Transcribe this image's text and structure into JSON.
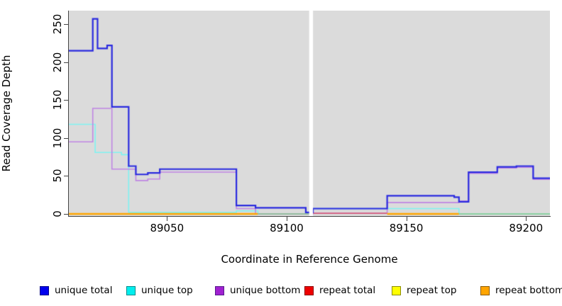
{
  "chart_data": {
    "type": "line",
    "subtype": "step",
    "title": "",
    "xlabel": "Coordinate in Reference Genome",
    "ylabel": "Read Coverage Depth",
    "xlim": [
      89009,
      89210
    ],
    "ylim": [
      0,
      268
    ],
    "xticks": [
      89050,
      89100,
      89150,
      89200
    ],
    "yticks": [
      0,
      50,
      100,
      150,
      200,
      250
    ],
    "grid": "off",
    "plot_background": "#DBDBDB",
    "gap_band_x": [
      89109.4,
      89111
    ],
    "series": [
      {
        "name": "unique total",
        "color": "#2A2ADF",
        "width": 2.2,
        "draw": true,
        "points": [
          [
            89009,
            215
          ],
          [
            89019,
            257
          ],
          [
            89021,
            218
          ],
          [
            89025,
            222
          ],
          [
            89027,
            141
          ],
          [
            89034,
            63
          ],
          [
            89037,
            52
          ],
          [
            89042,
            54
          ],
          [
            89047,
            59
          ],
          [
            89079,
            11
          ],
          [
            89087,
            8
          ],
          [
            89108,
            2
          ],
          [
            89111,
            7
          ],
          [
            89142,
            24
          ],
          [
            89170,
            22
          ],
          [
            89172,
            16
          ],
          [
            89176,
            55
          ],
          [
            89188,
            62
          ],
          [
            89196,
            63
          ],
          [
            89203,
            47
          ]
        ]
      },
      {
        "name": "unique top",
        "color": "#7EF3F1",
        "width": 1.6,
        "draw": true,
        "points": [
          [
            89009,
            118
          ],
          [
            89020,
            81
          ],
          [
            89031,
            78
          ],
          [
            89034,
            2
          ],
          [
            89079,
            4
          ],
          [
            89088,
            0
          ],
          [
            89111,
            7
          ],
          [
            89172,
            0
          ]
        ]
      },
      {
        "name": "unique bottom",
        "color": "#BF85E3",
        "width": 1.6,
        "draw": true,
        "points": [
          [
            89009,
            95
          ],
          [
            89019,
            139
          ],
          [
            89027,
            59
          ],
          [
            89037,
            44
          ],
          [
            89042,
            46
          ],
          [
            89047,
            55
          ],
          [
            89079,
            7
          ],
          [
            89087,
            0
          ],
          [
            89111,
            1
          ],
          [
            89142,
            15
          ],
          [
            89172,
            17
          ],
          [
            89176,
            53.5
          ],
          [
            89188,
            60.5
          ],
          [
            89196,
            61.5
          ],
          [
            89203,
            45.5
          ]
        ]
      },
      {
        "name": "repeat total",
        "color": "#EE0000",
        "width": 1.6,
        "draw": false,
        "points": [
          [
            89009,
            0
          ]
        ]
      },
      {
        "name": "repeat top",
        "color": "#FFFF00",
        "width": 1.6,
        "draw": false,
        "points": [
          [
            89009,
            0
          ]
        ]
      },
      {
        "name": "repeat bottom",
        "color": "#FFA500",
        "width": 2.4,
        "draw": false,
        "points": [
          [
            89009,
            0
          ]
        ]
      }
    ],
    "bottom_segments": [
      {
        "x0": 89009,
        "x1": 89088,
        "value": 0,
        "color": "#FFA500",
        "width": 2.4
      },
      {
        "x0": 89088,
        "x1": 89109.4,
        "value": 0,
        "color": "#87C787",
        "width": 1.6
      },
      {
        "x0": 89111,
        "x1": 89142,
        "value": 0.8,
        "color": "#D45E7C",
        "width": 1.8
      },
      {
        "x0": 89142,
        "x1": 89172,
        "value": 0,
        "color": "#FFA500",
        "width": 2.4
      },
      {
        "x0": 89172,
        "x1": 89210,
        "value": 0,
        "color": "#87C787",
        "width": 1.6
      }
    ],
    "legend": [
      {
        "label": "unique total",
        "fill": "#0000EE",
        "border": "#00008B"
      },
      {
        "label": "unique top",
        "fill": "#00EEEE",
        "border": "#008B8B"
      },
      {
        "label": "unique bottom",
        "fill": "#A020D0",
        "border": "#551A8B"
      },
      {
        "label": "repeat total",
        "fill": "#EE0000",
        "border": "#8B0000"
      },
      {
        "label": "repeat top",
        "fill": "#FFFF00",
        "border": "#8B8B00"
      },
      {
        "label": "repeat bottom",
        "fill": "#FFA500",
        "border": "#8B5A00"
      }
    ],
    "legend_position": "bottom"
  }
}
